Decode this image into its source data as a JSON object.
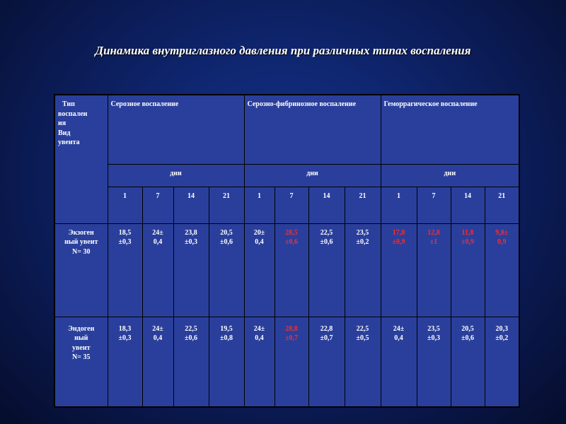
{
  "title": "Динамика внутриглазного давления при различных типах воспаления",
  "table": {
    "corner_lines": [
      "Тип",
      "воспален",
      "ия",
      "Вид",
      "увеита"
    ],
    "groups": [
      "Серозное воспаление",
      "Серозно-фибринозное воспаление",
      "Геморрагическое воспаление"
    ],
    "days_label": "дни",
    "day_numbers": [
      "1",
      "7",
      "14",
      "21"
    ],
    "rows": [
      {
        "head_lines": [
          "Экзоген",
          "ный увеит",
          "N= 30"
        ],
        "cells": [
          {
            "l1": "18,5",
            "l2": "±0,3",
            "red": false
          },
          {
            "l1": "24±",
            "l2": "0,4",
            "red": false
          },
          {
            "l1": "23,8",
            "l2": "±0,3",
            "red": false
          },
          {
            "l1": "20,5",
            "l2": "±0,6",
            "red": false
          },
          {
            "l1": "20±",
            "l2": "0,4",
            "red": false
          },
          {
            "l1": "28,5",
            "l2": "±0,6",
            "red": true
          },
          {
            "l1": "22,5",
            "l2": "±0,6",
            "red": false
          },
          {
            "l1": "23,5",
            "l2": "±0,2",
            "red": false
          },
          {
            "l1": "17,8",
            "l2": "±0,9",
            "red": true
          },
          {
            "l1": "12,8",
            "l2": "±1",
            "red": true
          },
          {
            "l1": "11,8",
            "l2": "±0,9",
            "red": true
          },
          {
            "l1": "9,8±",
            "l2": "0,9",
            "red": true
          }
        ]
      },
      {
        "head_lines": [
          "Эндоген",
          "ный",
          "увеит",
          "N= 35"
        ],
        "cells": [
          {
            "l1": "18,3",
            "l2": "±0,3",
            "red": false
          },
          {
            "l1": "24±",
            "l2": "0,4",
            "red": false
          },
          {
            "l1": "22,5",
            "l2": "±0,6",
            "red": false
          },
          {
            "l1": "19,5",
            "l2": "±0,8",
            "red": false
          },
          {
            "l1": "24±",
            "l2": "0,4",
            "red": false
          },
          {
            "l1": "28,8",
            "l2": "±0,7",
            "red": true
          },
          {
            "l1": "22,8",
            "l2": "±0,7",
            "red": false
          },
          {
            "l1": "22,5",
            "l2": "±0,5",
            "red": false
          },
          {
            "l1": "24±",
            "l2": "0,4",
            "red": false
          },
          {
            "l1": "23,5",
            "l2": "±0,3",
            "red": false
          },
          {
            "l1": "20,5",
            "l2": "±0,6",
            "red": false
          },
          {
            "l1": "20,3",
            "l2": "±0,2",
            "red": false
          }
        ]
      }
    ]
  },
  "colors": {
    "highlight": "#ff2a2a",
    "table_bg": "#2a3f9c",
    "page_bg": "#0f2670"
  }
}
